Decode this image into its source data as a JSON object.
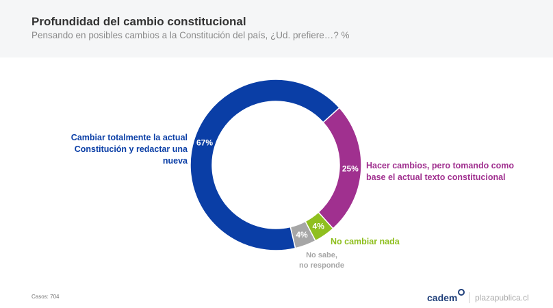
{
  "header": {
    "title": "Profundidad del cambio constitucional",
    "subtitle": "Pensando en posibles cambios a la Constitución del país, ¿Ud. prefiere…? %"
  },
  "chart_data": {
    "type": "pie",
    "donut": true,
    "title": "Profundidad del cambio constitucional",
    "categories": [
      "Hacer cambios, pero tomando como base el actual texto constitucional",
      "No cambiar nada",
      "No sabe, no responde",
      "Cambiar totalmente la actual Constitución y redactar una nueva"
    ],
    "values": [
      25,
      4,
      4,
      67
    ],
    "value_labels": [
      "25%",
      "4%",
      "4%",
      "67%"
    ],
    "colors": [
      "#a0308f",
      "#8fbf1f",
      "#a6a6a6",
      "#0a3ea6"
    ],
    "label_colors": [
      "#a0308f",
      "#8fbf1f",
      "#a6a6a6",
      "#0a3ea6"
    ],
    "label_lines": [
      [
        "Hacer cambios, pero tomando como",
        "base el actual texto constitucional"
      ],
      [
        "No cambiar nada"
      ],
      [
        "No sabe,",
        "no responde"
      ],
      [
        "Cambiar totalmente la actual",
        "Constitución y redactar una nueva"
      ]
    ]
  },
  "footer": {
    "casos": "Casos: 704",
    "logo": "cadem",
    "site": "plazapublica.cl"
  }
}
